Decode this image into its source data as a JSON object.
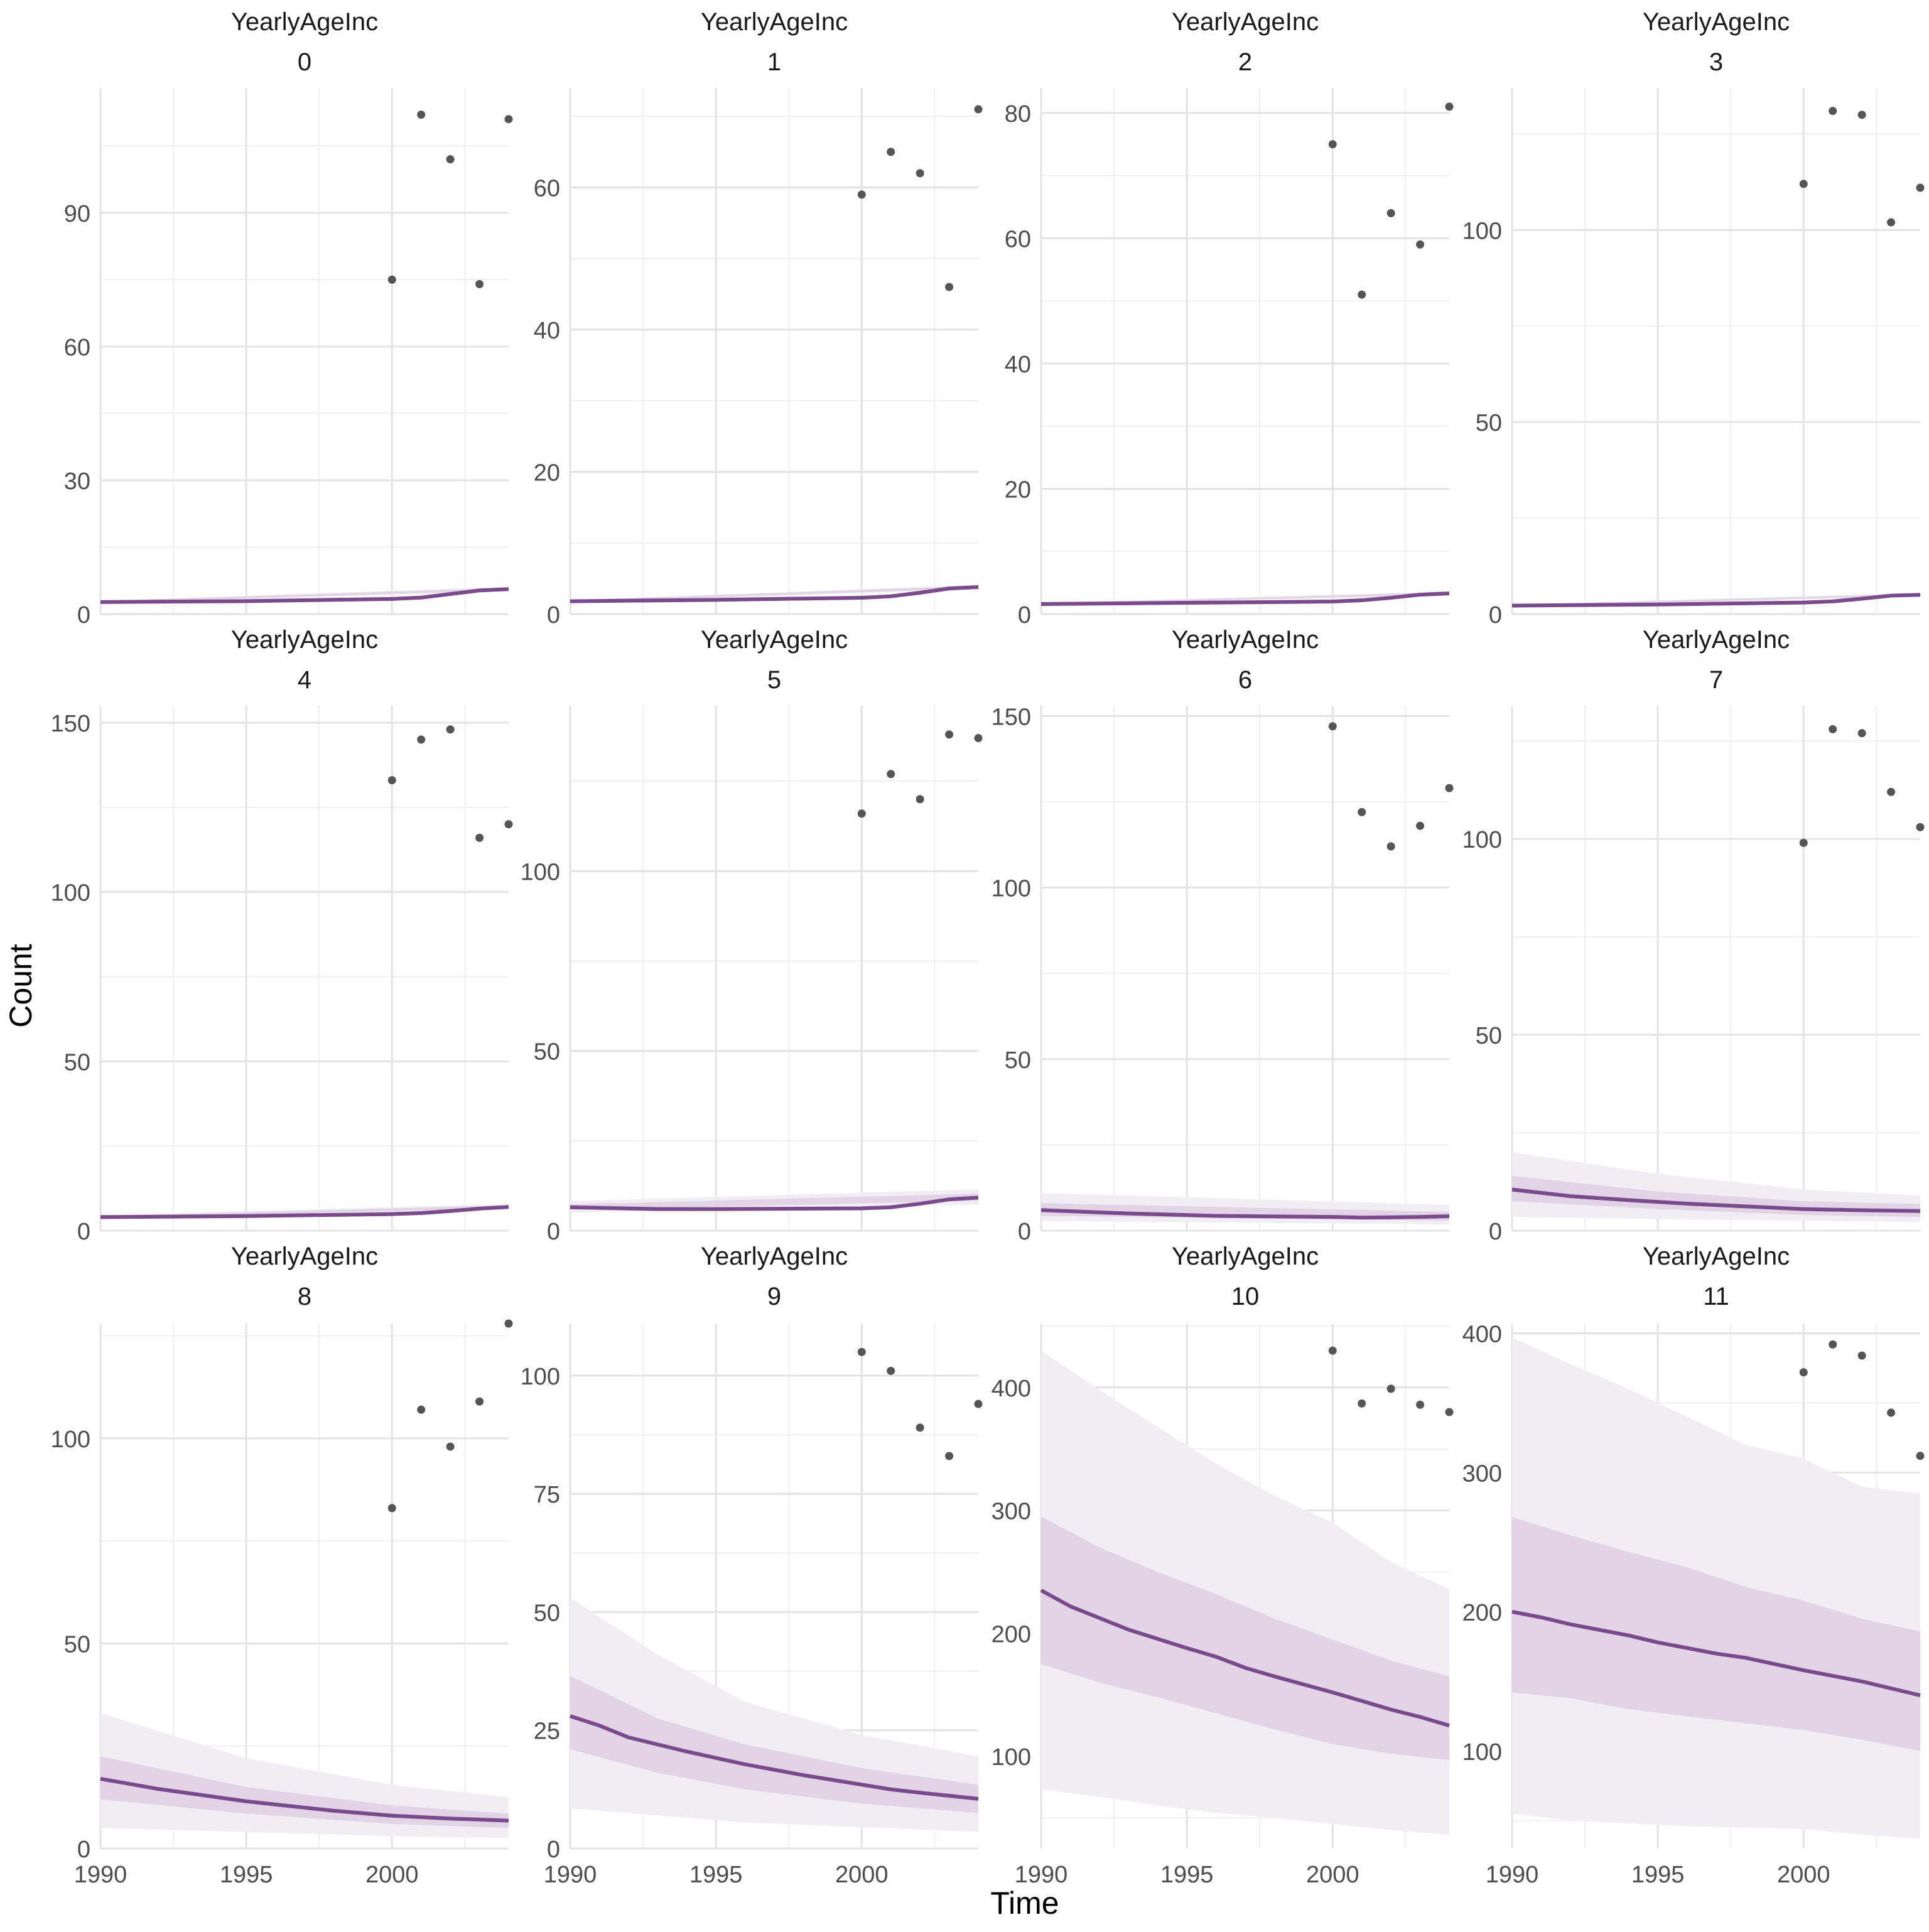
{
  "figure": {
    "xlabel": "Time",
    "ylabel": "Count",
    "line_color": "#7b4a8c",
    "band_outer_color": "#f1eef3",
    "band_inner_color": "#e0d4e5",
    "point_color": "#555555",
    "grid_color": "#ebebeb"
  },
  "chart_data": [
    {
      "type": "line",
      "strip_title": "YearlyAgeInc",
      "strip_sub": "0",
      "xlim": [
        1990,
        2004
      ],
      "ylim": [
        0,
        118
      ],
      "xticks": [
        1990,
        1995,
        2000
      ],
      "yticks": [
        0,
        30,
        60,
        90
      ],
      "line": [
        [
          1990,
          2.7
        ],
        [
          1995,
          2.9
        ],
        [
          2000,
          3.4
        ],
        [
          2001,
          3.7
        ],
        [
          2002,
          4.5
        ],
        [
          2003,
          5.3
        ],
        [
          2004,
          5.6
        ]
      ],
      "inner_band": [
        [
          1990,
          2.5,
          2.9
        ],
        [
          2004,
          5.3,
          5.9
        ]
      ],
      "outer_band": [
        [
          1990,
          2.4,
          3.0
        ],
        [
          2004,
          5.1,
          6.1
        ]
      ],
      "points": [
        [
          2000,
          75
        ],
        [
          2001,
          112
        ],
        [
          2002,
          102
        ],
        [
          2003,
          74
        ],
        [
          2004,
          111
        ]
      ]
    },
    {
      "type": "line",
      "strip_title": "YearlyAgeInc",
      "strip_sub": "1",
      "xlim": [
        1990,
        2004
      ],
      "ylim": [
        0,
        74
      ],
      "xticks": [
        1990,
        1995,
        2000
      ],
      "yticks": [
        0,
        20,
        40,
        60
      ],
      "line": [
        [
          1990,
          1.8
        ],
        [
          1995,
          2.0
        ],
        [
          2000,
          2.3
        ],
        [
          2001,
          2.5
        ],
        [
          2002,
          3.0
        ],
        [
          2003,
          3.6
        ],
        [
          2004,
          3.8
        ]
      ],
      "inner_band": [
        [
          1990,
          1.7,
          1.9
        ],
        [
          2004,
          3.6,
          4.0
        ]
      ],
      "outer_band": [
        [
          1990,
          1.6,
          2.0
        ],
        [
          2004,
          3.5,
          4.1
        ]
      ],
      "points": [
        [
          2000,
          59
        ],
        [
          2001,
          65
        ],
        [
          2002,
          62
        ],
        [
          2003,
          46
        ],
        [
          2004,
          71
        ]
      ]
    },
    {
      "type": "line",
      "strip_title": "YearlyAgeInc",
      "strip_sub": "2",
      "xlim": [
        1990,
        2004
      ],
      "ylim": [
        0,
        84
      ],
      "xticks": [
        1990,
        1995,
        2000
      ],
      "yticks": [
        0,
        20,
        40,
        60,
        80
      ],
      "line": [
        [
          1990,
          1.6
        ],
        [
          1995,
          1.8
        ],
        [
          2000,
          2.0
        ],
        [
          2001,
          2.2
        ],
        [
          2002,
          2.6
        ],
        [
          2003,
          3.1
        ],
        [
          2004,
          3.3
        ]
      ],
      "inner_band": [
        [
          1990,
          1.5,
          1.7
        ],
        [
          2004,
          3.1,
          3.5
        ]
      ],
      "outer_band": [
        [
          1990,
          1.4,
          1.8
        ],
        [
          2004,
          3.0,
          3.6
        ]
      ],
      "points": [
        [
          2000,
          75
        ],
        [
          2001,
          51
        ],
        [
          2002,
          64
        ],
        [
          2003,
          59
        ],
        [
          2004,
          81
        ]
      ]
    },
    {
      "type": "line",
      "strip_title": "YearlyAgeInc",
      "strip_sub": "3",
      "xlim": [
        1990,
        2004
      ],
      "ylim": [
        0,
        137
      ],
      "xticks": [
        1990,
        1995,
        2000
      ],
      "yticks": [
        0,
        50,
        100
      ],
      "line": [
        [
          1990,
          2.2
        ],
        [
          1995,
          2.5
        ],
        [
          2000,
          3.0
        ],
        [
          2001,
          3.3
        ],
        [
          2002,
          4.0
        ],
        [
          2003,
          4.8
        ],
        [
          2004,
          5.0
        ]
      ],
      "inner_band": [
        [
          1990,
          2.0,
          2.4
        ],
        [
          2004,
          4.8,
          5.3
        ]
      ],
      "outer_band": [
        [
          1990,
          1.9,
          2.5
        ],
        [
          2004,
          4.6,
          5.5
        ]
      ],
      "points": [
        [
          2000,
          112
        ],
        [
          2001,
          131
        ],
        [
          2002,
          130
        ],
        [
          2003,
          102
        ],
        [
          2004,
          111
        ]
      ]
    },
    {
      "type": "line",
      "strip_title": "YearlyAgeInc",
      "strip_sub": "4",
      "xlim": [
        1990,
        2004
      ],
      "ylim": [
        0,
        155
      ],
      "xticks": [
        1990,
        1995,
        2000
      ],
      "yticks": [
        0,
        50,
        100,
        150
      ],
      "line": [
        [
          1990,
          4.0
        ],
        [
          1995,
          4.3
        ],
        [
          2000,
          4.9
        ],
        [
          2001,
          5.2
        ],
        [
          2002,
          5.8
        ],
        [
          2003,
          6.5
        ],
        [
          2004,
          7.0
        ]
      ],
      "inner_band": [
        [
          1990,
          3.7,
          4.3
        ],
        [
          2004,
          6.6,
          7.5
        ]
      ],
      "outer_band": [
        [
          1990,
          3.4,
          4.6
        ],
        [
          2004,
          6.2,
          7.9
        ]
      ],
      "points": [
        [
          2000,
          133
        ],
        [
          2001,
          145
        ],
        [
          2002,
          148
        ],
        [
          2003,
          116
        ],
        [
          2004,
          120
        ]
      ]
    },
    {
      "type": "line",
      "strip_title": "YearlyAgeInc",
      "strip_sub": "5",
      "xlim": [
        1990,
        2004
      ],
      "ylim": [
        0,
        146
      ],
      "xticks": [
        1990,
        1995,
        2000
      ],
      "yticks": [
        0,
        50,
        100
      ],
      "line": [
        [
          1990,
          6.5
        ],
        [
          1993,
          6.0
        ],
        [
          1995,
          6.0
        ],
        [
          2000,
          6.2
        ],
        [
          2001,
          6.5
        ],
        [
          2002,
          7.5
        ],
        [
          2003,
          8.7
        ],
        [
          2004,
          9.2
        ]
      ],
      "inner_band": [
        [
          1990,
          5.8,
          7.3
        ],
        [
          2004,
          8.3,
          10.3
        ]
      ],
      "outer_band": [
        [
          1990,
          5.0,
          8.2
        ],
        [
          2004,
          7.3,
          11.5
        ]
      ],
      "points": [
        [
          2000,
          116
        ],
        [
          2001,
          127
        ],
        [
          2002,
          120
        ],
        [
          2003,
          138
        ],
        [
          2004,
          137
        ]
      ]
    },
    {
      "type": "line",
      "strip_title": "YearlyAgeInc",
      "strip_sub": "6",
      "xlim": [
        1990,
        2004
      ],
      "ylim": [
        0,
        153
      ],
      "xticks": [
        1990,
        1995,
        2000
      ],
      "yticks": [
        0,
        50,
        100,
        150
      ],
      "line": [
        [
          1990,
          6.0
        ],
        [
          1993,
          5.0
        ],
        [
          1996,
          4.3
        ],
        [
          2000,
          4.0
        ],
        [
          2001,
          3.8
        ],
        [
          2002,
          3.9
        ],
        [
          2003,
          4.0
        ],
        [
          2004,
          4.2
        ]
      ],
      "inner_band": [
        [
          1990,
          4.3,
          8.0
        ],
        [
          2004,
          2.9,
          5.5
        ]
      ],
      "outer_band": [
        [
          1990,
          2.8,
          11.0
        ],
        [
          2004,
          1.8,
          7.5
        ]
      ],
      "points": [
        [
          2000,
          147
        ],
        [
          2001,
          122
        ],
        [
          2002,
          112
        ],
        [
          2003,
          118
        ],
        [
          2004,
          129
        ]
      ]
    },
    {
      "type": "line",
      "strip_title": "YearlyAgeInc",
      "strip_sub": "7",
      "xlim": [
        1990,
        2004
      ],
      "ylim": [
        0,
        134
      ],
      "xticks": [
        1990,
        1995,
        2000
      ],
      "yticks": [
        0,
        50,
        100
      ],
      "line": [
        [
          1990,
          10.5
        ],
        [
          1992,
          8.8
        ],
        [
          1994,
          7.8
        ],
        [
          1996,
          6.9
        ],
        [
          1998,
          6.2
        ],
        [
          2000,
          5.5
        ],
        [
          2002,
          5.2
        ],
        [
          2004,
          5.0
        ]
      ],
      "inner_band": [
        [
          1990,
          7.5,
          14.0
        ],
        [
          1995,
          5.5,
          10.0
        ],
        [
          2000,
          4.0,
          7.5
        ],
        [
          2004,
          3.5,
          6.8
        ]
      ],
      "outer_band": [
        [
          1990,
          3.5,
          20.0
        ],
        [
          1995,
          3.0,
          14.5
        ],
        [
          2000,
          2.5,
          10.5
        ],
        [
          2004,
          2.2,
          9.0
        ]
      ],
      "points": [
        [
          2000,
          99
        ],
        [
          2001,
          128
        ],
        [
          2002,
          127
        ],
        [
          2003,
          112
        ],
        [
          2004,
          103
        ]
      ]
    },
    {
      "type": "line",
      "strip_title": "YearlyAgeInc",
      "strip_sub": "8",
      "xlim": [
        1990,
        2004
      ],
      "ylim": [
        0,
        128
      ],
      "xticks": [
        1990,
        1995,
        2000
      ],
      "yticks": [
        0,
        50,
        100
      ],
      "line": [
        [
          1990,
          17.0
        ],
        [
          1992,
          14.5
        ],
        [
          1995,
          11.5
        ],
        [
          1998,
          9.2
        ],
        [
          2000,
          8.0
        ],
        [
          2002,
          7.3
        ],
        [
          2004,
          6.8
        ]
      ],
      "inner_band": [
        [
          1990,
          12.0,
          22.5
        ],
        [
          1995,
          8.5,
          15.0
        ],
        [
          2000,
          6.0,
          10.5
        ],
        [
          2004,
          5.0,
          8.5
        ]
      ],
      "outer_band": [
        [
          1990,
          5.0,
          33.0
        ],
        [
          1995,
          4.0,
          22.0
        ],
        [
          2000,
          3.0,
          15.5
        ],
        [
          2004,
          2.5,
          12.5
        ]
      ],
      "points": [
        [
          2000,
          83
        ],
        [
          2001,
          107
        ],
        [
          2002,
          98
        ],
        [
          2003,
          109
        ],
        [
          2004,
          128
        ]
      ]
    },
    {
      "type": "line",
      "strip_title": "YearlyAgeInc",
      "strip_sub": "9",
      "xlim": [
        1990,
        2004
      ],
      "ylim": [
        0,
        111
      ],
      "xticks": [
        1990,
        1995,
        2000
      ],
      "yticks": [
        0,
        25,
        50,
        75,
        100
      ],
      "line": [
        [
          1990,
          28.0
        ],
        [
          1991,
          26.0
        ],
        [
          1992,
          23.5
        ],
        [
          1994,
          20.5
        ],
        [
          1996,
          17.8
        ],
        [
          1998,
          15.5
        ],
        [
          2000,
          13.5
        ],
        [
          2001,
          12.5
        ],
        [
          2002,
          11.8
        ],
        [
          2004,
          10.5
        ]
      ],
      "inner_band": [
        [
          1990,
          21.0,
          36.5
        ],
        [
          1993,
          16.0,
          27.5
        ],
        [
          1996,
          12.5,
          22.0
        ],
        [
          2000,
          9.5,
          17.0
        ],
        [
          2004,
          7.5,
          13.5
        ]
      ],
      "outer_band": [
        [
          1990,
          8.5,
          53.0
        ],
        [
          1993,
          7.0,
          41.0
        ],
        [
          1996,
          5.5,
          31.0
        ],
        [
          2000,
          4.5,
          24.0
        ],
        [
          2004,
          3.5,
          19.5
        ]
      ],
      "points": [
        [
          2000,
          105
        ],
        [
          2001,
          101
        ],
        [
          2002,
          89
        ],
        [
          2003,
          83
        ],
        [
          2004,
          94
        ]
      ]
    },
    {
      "type": "line",
      "strip_title": "YearlyAgeInc",
      "strip_sub": "10",
      "xlim": [
        1990,
        2004
      ],
      "ylim": [
        25,
        452
      ],
      "xticks": [
        1990,
        1995,
        2000
      ],
      "yticks": [
        100,
        200,
        300,
        400
      ],
      "line": [
        [
          1990,
          235
        ],
        [
          1991,
          222
        ],
        [
          1993,
          203
        ],
        [
          1995,
          188
        ],
        [
          1996,
          181
        ],
        [
          1997,
          172
        ],
        [
          1998,
          165
        ],
        [
          2000,
          152
        ],
        [
          2001,
          145
        ],
        [
          2002,
          138
        ],
        [
          2003,
          132
        ],
        [
          2004,
          125
        ]
      ],
      "inner_band": [
        [
          1990,
          175,
          295
        ],
        [
          1992,
          160,
          270
        ],
        [
          1994,
          148,
          250
        ],
        [
          1996,
          135,
          232
        ],
        [
          1998,
          122,
          212
        ],
        [
          2000,
          110,
          195
        ],
        [
          2002,
          102,
          178
        ],
        [
          2004,
          97,
          165
        ]
      ],
      "outer_band": [
        [
          1990,
          73,
          430
        ],
        [
          1992,
          67,
          398
        ],
        [
          1994,
          60,
          368
        ],
        [
          1996,
          54,
          338
        ],
        [
          1998,
          50,
          312
        ],
        [
          2000,
          45,
          290
        ],
        [
          2002,
          40,
          258
        ],
        [
          2004,
          36,
          236
        ]
      ],
      "points": [
        [
          2000,
          430
        ],
        [
          2001,
          387
        ],
        [
          2002,
          399
        ],
        [
          2003,
          386
        ],
        [
          2004,
          380
        ]
      ]
    },
    {
      "type": "line",
      "strip_title": "YearlyAgeInc",
      "strip_sub": "11",
      "xlim": [
        1990,
        2004
      ],
      "ylim": [
        30,
        407
      ],
      "xticks": [
        1990,
        1995,
        2000
      ],
      "yticks": [
        100,
        200,
        300,
        400
      ],
      "line": [
        [
          1990,
          200
        ],
        [
          1991,
          196
        ],
        [
          1992,
          191
        ],
        [
          1994,
          183
        ],
        [
          1995,
          178
        ],
        [
          1997,
          170
        ],
        [
          1998,
          167
        ],
        [
          2000,
          158
        ],
        [
          2002,
          150
        ],
        [
          2003,
          145
        ],
        [
          2004,
          140
        ]
      ],
      "inner_band": [
        [
          1990,
          142,
          268
        ],
        [
          1992,
          138,
          255
        ],
        [
          1994,
          130,
          243
        ],
        [
          1996,
          125,
          232
        ],
        [
          1998,
          120,
          218
        ],
        [
          2000,
          115,
          208
        ],
        [
          2002,
          108,
          195
        ],
        [
          2004,
          100,
          186
        ]
      ],
      "outer_band": [
        [
          1990,
          55,
          397
        ],
        [
          1992,
          50,
          378
        ],
        [
          1994,
          48,
          360
        ],
        [
          1996,
          46,
          340
        ],
        [
          1998,
          45,
          320
        ],
        [
          2000,
          44,
          310
        ],
        [
          2002,
          40,
          290
        ],
        [
          2004,
          37,
          285
        ]
      ],
      "points": [
        [
          2000,
          372
        ],
        [
          2001,
          392
        ],
        [
          2002,
          384
        ],
        [
          2003,
          343
        ],
        [
          2004,
          312
        ]
      ]
    }
  ]
}
